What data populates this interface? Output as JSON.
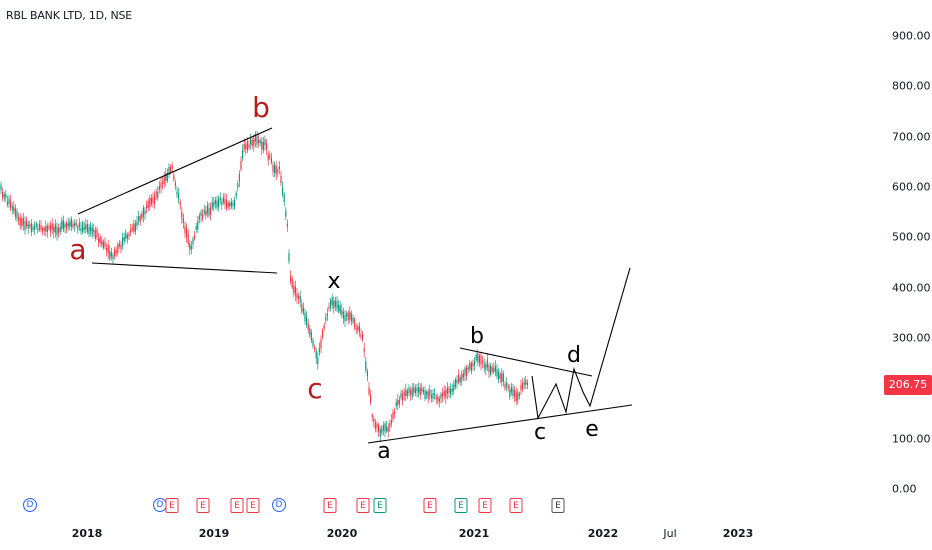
{
  "chart": {
    "title": "RBL BANK LTD, 1D, NSE",
    "last_price": "206.75",
    "colors": {
      "up": "#089981",
      "down": "#f23645",
      "wave_red": "#b71c1c",
      "wave_black": "#000000",
      "badge": "#f23645"
    }
  },
  "price_axis": {
    "ticks": [
      "900.00",
      "800.00",
      "700.00",
      "600.00",
      "500.00",
      "400.00",
      "300.00",
      "100.00",
      "0.00"
    ]
  },
  "time_axis": {
    "ticks": [
      {
        "label": "2018",
        "major": true
      },
      {
        "label": "2019",
        "major": true
      },
      {
        "label": "2020",
        "major": true
      },
      {
        "label": "2021",
        "major": true
      },
      {
        "label": "2022",
        "major": true
      },
      {
        "label": "Jul",
        "major": false
      },
      {
        "label": "2023",
        "major": true
      }
    ]
  },
  "wave_labels": [
    {
      "text": "a",
      "color": "red"
    },
    {
      "text": "b",
      "color": "red"
    },
    {
      "text": "c",
      "color": "red"
    },
    {
      "text": "x",
      "color": "black"
    },
    {
      "text": "a",
      "color": "black"
    },
    {
      "text": "b",
      "color": "black"
    },
    {
      "text": "c",
      "color": "black"
    },
    {
      "text": "d",
      "color": "black"
    },
    {
      "text": "e",
      "color": "black"
    }
  ],
  "events": [
    {
      "type": "D"
    },
    {
      "type": "D"
    },
    {
      "type": "E"
    },
    {
      "type": "E"
    },
    {
      "type": "E"
    },
    {
      "type": "E"
    },
    {
      "type": "D"
    },
    {
      "type": "E"
    },
    {
      "type": "E"
    },
    {
      "type": "E-green"
    },
    {
      "type": "E"
    },
    {
      "type": "E-green"
    },
    {
      "type": "E"
    },
    {
      "type": "E"
    },
    {
      "type": "E-gray"
    }
  ]
}
